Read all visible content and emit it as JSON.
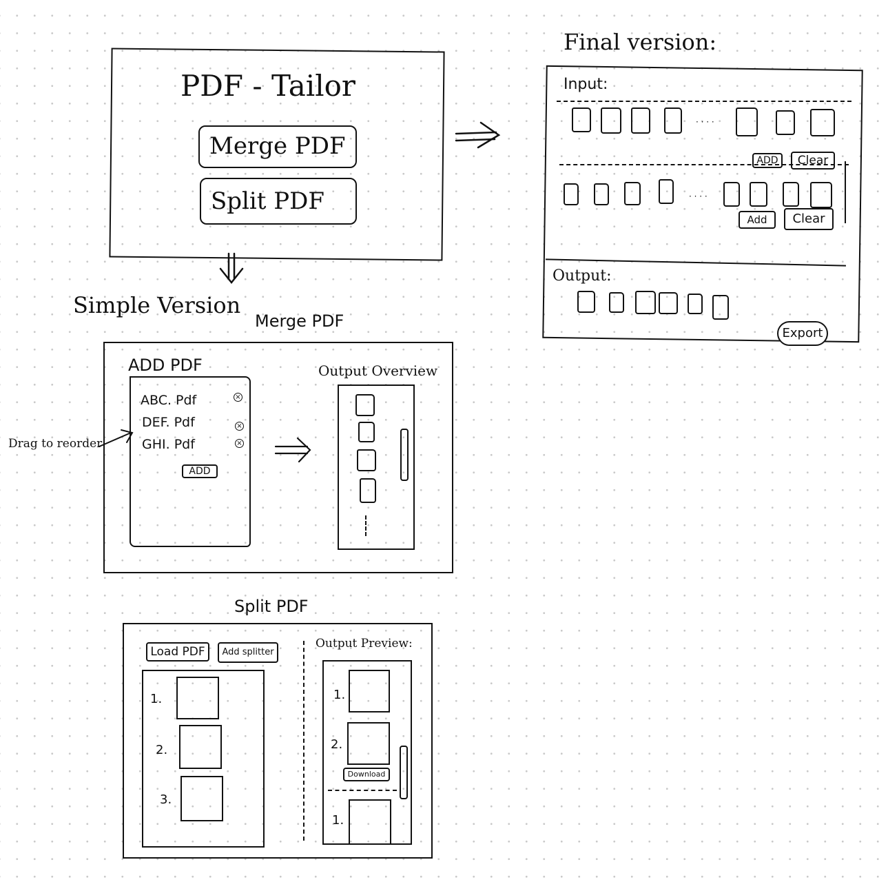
{
  "home": {
    "title": "PDF - Tailor",
    "merge_button": "Merge PDF",
    "split_button": "Split PDF"
  },
  "simple": {
    "heading": "Simple Version",
    "merge": {
      "title": "Merge PDF",
      "add_panel_title": "ADD PDF",
      "files": [
        "ABC. Pdf",
        "DEF. Pdf",
        "GHI. Pdf"
      ],
      "add_button": "ADD",
      "output_title": "Output Overview",
      "drag_note": "Drag to reorder"
    },
    "split": {
      "title": "Split PDF",
      "load_button": "Load PDF",
      "add_splitter_button": "Add splitter",
      "pages": [
        "1.",
        "2.",
        "3."
      ],
      "preview_title": "Output Preview:",
      "preview_pages": [
        "1.",
        "2.",
        "1."
      ],
      "download_button": "Download"
    }
  },
  "final": {
    "heading": "Final version:",
    "input_label": "Input:",
    "ellipsis": "· · · ·",
    "row1_add": "ADD",
    "row1_clear": "Clear",
    "row2_add": "Add",
    "row2_clear": "Clear",
    "output_label": "Output:",
    "export_button": "Export"
  }
}
